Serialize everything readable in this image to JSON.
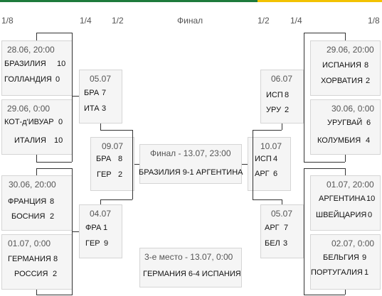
{
  "headers": {
    "r16_left": "1/8",
    "qf_left": "1/4",
    "sf_left": "1/2",
    "final": "Финал",
    "sf_right": "1/2",
    "qf_right": "1/4",
    "r16_right": "1/8"
  },
  "r16_left": [
    {
      "date": "28.06, 20:00",
      "team1": "БРАЗИЛИЯ",
      "score1": "10",
      "team2": "ГОЛЛАНДИЯ",
      "score2": "0"
    },
    {
      "date": "29.06, 0:00",
      "team1": "КОТ-д'ИВУАР",
      "score1": "0",
      "team2": "ИТАЛИЯ",
      "score2": "10"
    },
    {
      "date": "30.06, 20:00",
      "team1": "ФРАНЦИЯ",
      "score1": "8",
      "team2": "БОСНИЯ",
      "score2": "2"
    },
    {
      "date": "01.07, 0:00",
      "team1": "ГЕРМАНИЯ",
      "score1": "8",
      "team2": "РОССИЯ",
      "score2": "2"
    }
  ],
  "qf_left": [
    {
      "date": "05.07",
      "team1": "БРА",
      "score1": "7",
      "team2": "ИТА",
      "score2": "3"
    },
    {
      "date": "04.07",
      "team1": "ФРА",
      "score1": "1",
      "team2": "ГЕР",
      "score2": "9"
    }
  ],
  "sf_left": {
    "date": "09.07",
    "team1": "БРА",
    "score1": "8",
    "team2": "ГЕР",
    "score2": "2"
  },
  "final": {
    "title": "Финал - 13.07, 23:00",
    "result": "БРАЗИЛИЯ 9-1 АРГЕНТИНА"
  },
  "third_place": {
    "title": "3-е место - 13.07, 0:00",
    "result": "ГЕРМАНИЯ 6-4 ИСПАНИЯ"
  },
  "sf_right": {
    "date": "10.07",
    "team1": "ИСП",
    "score1": "4",
    "team2": "АРГ",
    "score2": "6"
  },
  "qf_right": [
    {
      "date": "06.07",
      "team1": "ИСП",
      "score1": "8",
      "team2": "УРУ",
      "score2": "2"
    },
    {
      "date": "05.07",
      "team1": "АРГ",
      "score1": "7",
      "team2": "БЕЛ",
      "score2": "3"
    }
  ],
  "r16_right": [
    {
      "date": "29.06, 20:00",
      "team1": "ИСПАНИЯ",
      "score1": "8",
      "team2": "ХОРВАТИЯ",
      "score2": "2"
    },
    {
      "date": "30.06, 0:00",
      "team1": "УРУГВАЙ",
      "score1": "6",
      "team2": "КОЛУМБИЯ",
      "score2": "4"
    },
    {
      "date": "01.07, 20:00",
      "team1": "АРГЕНТИНА",
      "score1": "10",
      "team2": "ШВЕЙЦАРИЯ",
      "score2": "0"
    },
    {
      "date": "02.07, 0:00",
      "team1": "БЕЛЬГИЯ",
      "score1": "9",
      "team2": "ПОРТУГАЛИЯ",
      "score2": "1"
    }
  ],
  "colors": {
    "top_green": "#1e7a3c",
    "top_yellow": "#f2c200",
    "box_bg": "#f5f5f5"
  }
}
